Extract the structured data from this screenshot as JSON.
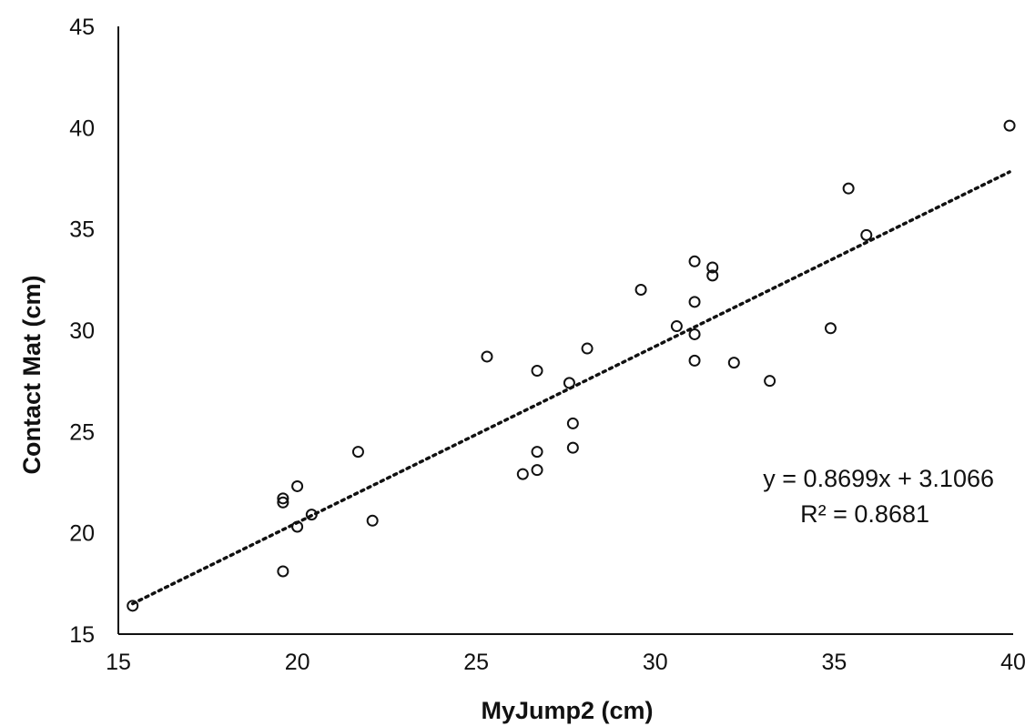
{
  "chart_data": {
    "type": "scatter",
    "xlabel": "MyJump2 (cm)",
    "ylabel": "Contact Mat (cm)",
    "xlim": [
      15,
      40
    ],
    "ylim": [
      15,
      45
    ],
    "xticks": [
      "15",
      "20",
      "25",
      "30",
      "35",
      "40"
    ],
    "yticks": [
      "15",
      "20",
      "25",
      "30",
      "35",
      "40",
      "45"
    ],
    "grid": false,
    "legend": "none",
    "series": [
      {
        "points": [
          {
            "x": 15.4,
            "y": 16.4
          },
          {
            "x": 19.6,
            "y": 18.1
          },
          {
            "x": 19.6,
            "y": 21.5
          },
          {
            "x": 19.6,
            "y": 21.7
          },
          {
            "x": 20.0,
            "y": 20.3
          },
          {
            "x": 20.0,
            "y": 22.3
          },
          {
            "x": 20.4,
            "y": 20.9
          },
          {
            "x": 21.7,
            "y": 24.0
          },
          {
            "x": 22.1,
            "y": 20.6
          },
          {
            "x": 25.3,
            "y": 28.7
          },
          {
            "x": 26.3,
            "y": 22.9
          },
          {
            "x": 26.7,
            "y": 23.1
          },
          {
            "x": 26.7,
            "y": 24.0
          },
          {
            "x": 26.7,
            "y": 28.0
          },
          {
            "x": 27.6,
            "y": 27.4
          },
          {
            "x": 27.7,
            "y": 25.4
          },
          {
            "x": 27.7,
            "y": 24.2
          },
          {
            "x": 28.1,
            "y": 29.1
          },
          {
            "x": 29.6,
            "y": 32.0
          },
          {
            "x": 30.6,
            "y": 30.2
          },
          {
            "x": 31.1,
            "y": 33.4
          },
          {
            "x": 31.1,
            "y": 31.4
          },
          {
            "x": 31.1,
            "y": 29.8
          },
          {
            "x": 31.1,
            "y": 28.5
          },
          {
            "x": 31.6,
            "y": 33.1
          },
          {
            "x": 31.6,
            "y": 32.7
          },
          {
            "x": 32.2,
            "y": 28.4
          },
          {
            "x": 33.2,
            "y": 27.5
          },
          {
            "x": 34.9,
            "y": 30.1
          },
          {
            "x": 35.4,
            "y": 37.0
          },
          {
            "x": 35.9,
            "y": 34.7
          },
          {
            "x": 39.9,
            "y": 40.1
          }
        ]
      }
    ],
    "trendline": {
      "slope": 0.8699,
      "intercept": 3.1066,
      "x_range": [
        15.4,
        39.9
      ],
      "style": "dotted"
    },
    "annotations": [
      "y = 0.8699x + 3.1066",
      "R² = 0.8681"
    ]
  }
}
